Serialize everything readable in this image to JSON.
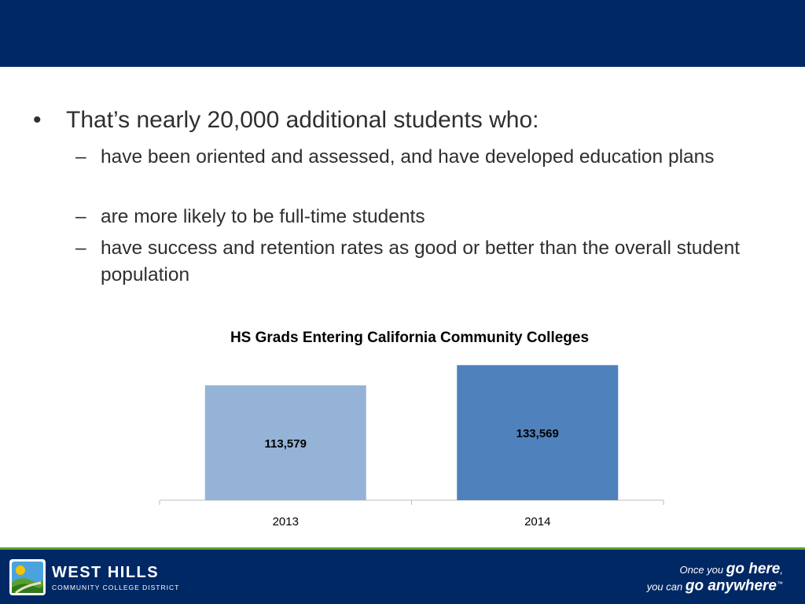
{
  "slide": {
    "bullet": "That’s nearly 20,000 additional students who:",
    "bullet_symbol": "•",
    "dash_symbol": "–",
    "subbullets": [
      "have been oriented and assessed, and have developed education plans",
      "are more likely to be full-time students",
      "have success and retention rates as good or better than the overall student population"
    ]
  },
  "chart_data": {
    "type": "bar",
    "title": "HS Grads Entering California Community Colleges",
    "categories": [
      "2013",
      "2014"
    ],
    "values": [
      113579,
      133569
    ],
    "data_labels": [
      "113,579",
      "133,569"
    ],
    "colors": [
      "#95b3d7",
      "#4f81bd"
    ],
    "ylim": [
      0,
      140000
    ],
    "grid": false,
    "legend": "none"
  },
  "footer": {
    "brand_name": "WEST HILLS",
    "brand_sub": "COMMUNITY COLLEGE DISTRICT",
    "tagline_line1_a": "Once you ",
    "tagline_line1_b": "go here",
    "tagline_line1_c": ",",
    "tagline_line2_a": "you can ",
    "tagline_line2_b": "go anywhere",
    "tagline_tm": "™",
    "colors": {
      "bar": "#002864",
      "accent": "#5aa02c"
    }
  }
}
